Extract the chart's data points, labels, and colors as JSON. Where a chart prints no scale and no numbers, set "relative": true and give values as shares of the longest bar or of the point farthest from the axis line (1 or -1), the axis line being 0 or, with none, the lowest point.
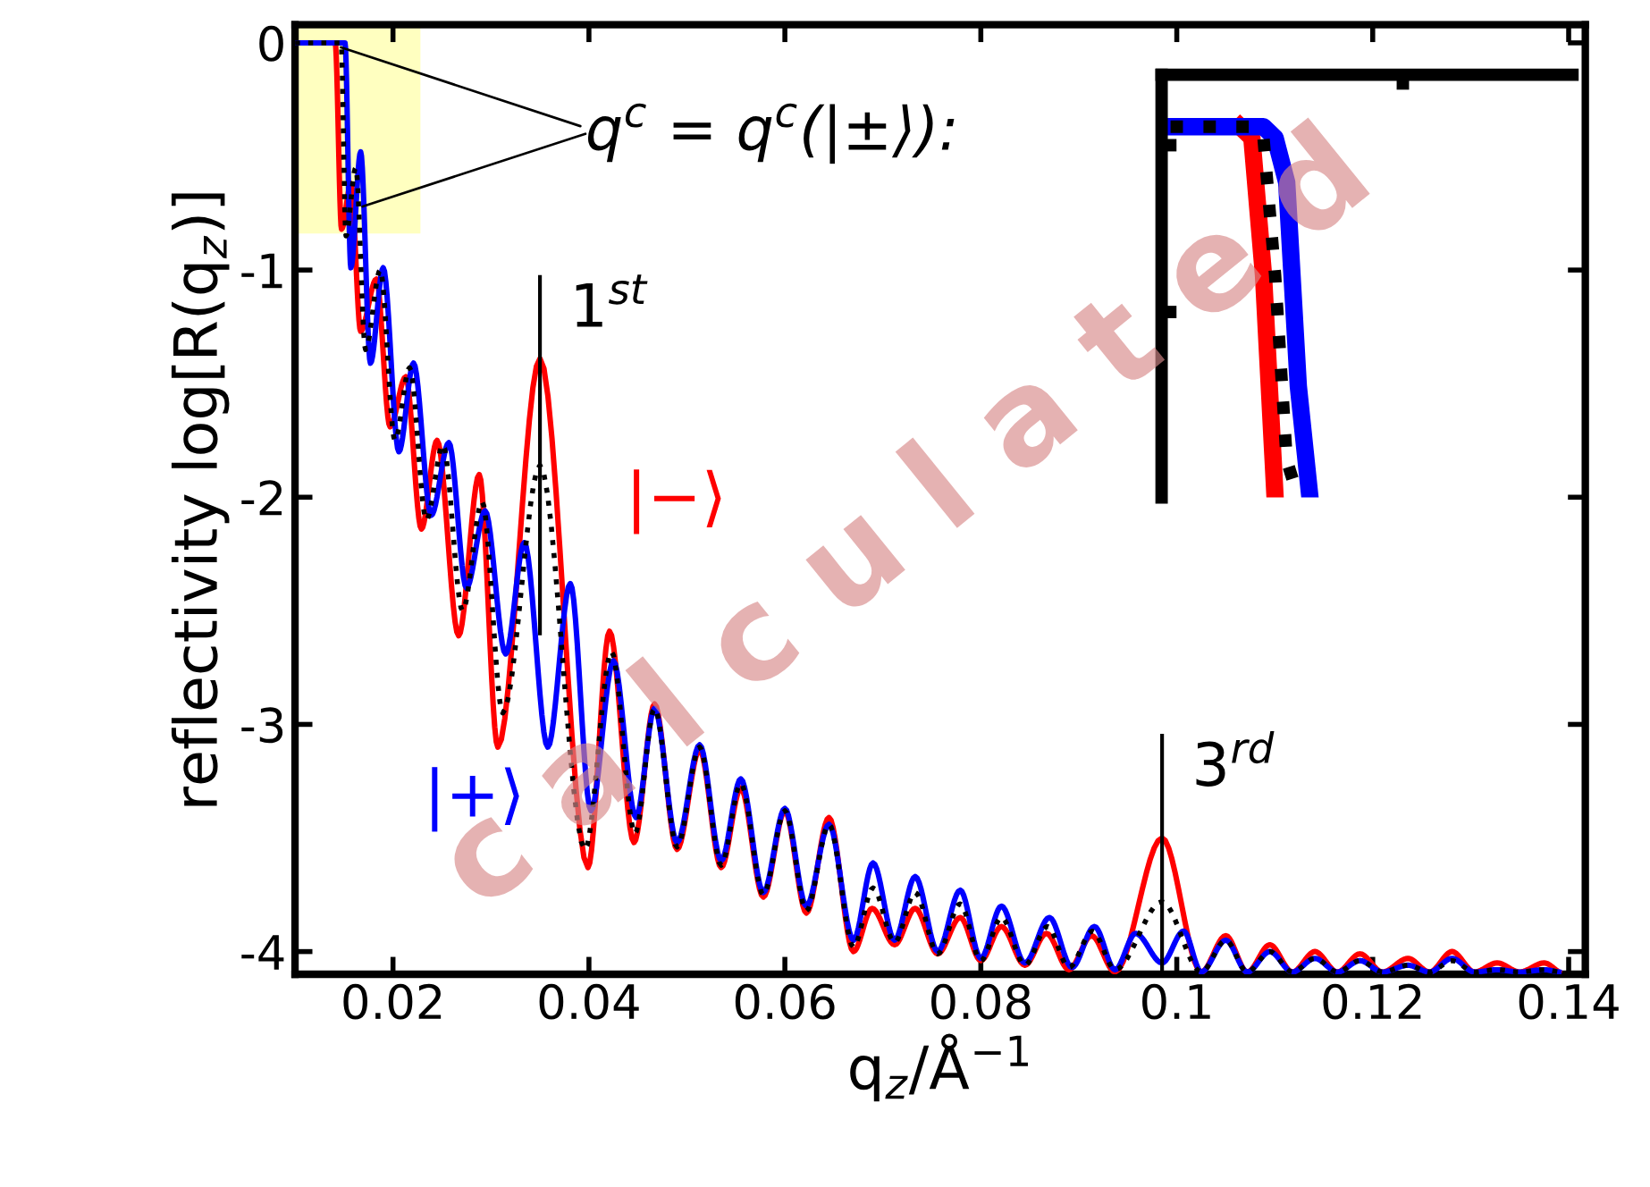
{
  "chart_data": [
    {
      "type": "line",
      "xlabel": "q$_{z}$/Å$^{−1}$",
      "ylabel": "reflectivity log[R(q$_{z}$)]",
      "xlim": [
        0.01,
        0.1417
      ],
      "ylim": [
        -4.1,
        0.08
      ],
      "xticks": [
        0.02,
        0.04,
        0.06,
        0.08,
        0.1,
        0.12,
        0.14
      ],
      "yticks": [
        0,
        -1,
        -2,
        -3,
        -4
      ],
      "grid": false,
      "series": [
        {
          "name": "|−⟩",
          "color": "#ff0000",
          "line_style": "solid",
          "x": [
            0.01,
            0.0141,
            0.01475,
            0.0157,
            0.0167,
            0.0183,
            0.0197,
            0.0213,
            0.0229,
            0.0245,
            0.0267,
            0.0288,
            0.0307,
            0.035,
            0.0399,
            0.0421,
            0.0446,
            0.0467,
            0.049,
            0.0513,
            0.0535,
            0.0555,
            0.0578,
            0.06,
            0.0622,
            0.0645,
            0.067,
            0.0689,
            0.0712,
            0.0733,
            0.0756,
            0.0779,
            0.08,
            0.0821,
            0.0845,
            0.0867,
            0.089,
            0.0913,
            0.0937,
            0.0985,
            0.1025,
            0.105,
            0.1072,
            0.1095,
            0.1118,
            0.1141,
            0.1164,
            0.1187,
            0.121,
            0.1236,
            0.1258,
            0.1281,
            0.1304,
            0.1327,
            0.135,
            0.1375,
            0.139
          ],
          "values": [
            0,
            0,
            -0.82,
            -0.62,
            -1.27,
            -1.04,
            -1.69,
            -1.47,
            -2.14,
            -1.75,
            -2.61,
            -1.9,
            -3.1,
            -1.39,
            -3.63,
            -2.59,
            -3.52,
            -2.91,
            -3.55,
            -3.11,
            -3.63,
            -3.28,
            -3.76,
            -3.38,
            -3.83,
            -3.41,
            -4.0,
            -3.81,
            -3.97,
            -3.81,
            -4.01,
            -3.85,
            -4.04,
            -3.89,
            -4.06,
            -3.92,
            -4.08,
            -3.93,
            -4.09,
            -3.5,
            -4.09,
            -3.93,
            -4.09,
            -3.97,
            -4.09,
            -4.0,
            -4.09,
            -4.01,
            -4.09,
            -4.03,
            -4.09,
            -4.0,
            -4.09,
            -4.05,
            -4.09,
            -4.05,
            -4.09
          ]
        },
        {
          "name": "|+⟩",
          "color": "#0000ff",
          "line_style": "solid",
          "x": [
            0.01,
            0.0151,
            0.0157,
            0.0167,
            0.0177,
            0.019,
            0.0206,
            0.0221,
            0.0239,
            0.0257,
            0.0275,
            0.0294,
            0.0315,
            0.0334,
            0.0358,
            0.0381,
            0.0402,
            0.0425,
            0.0448,
            0.0467,
            0.049,
            0.0513,
            0.0535,
            0.0555,
            0.0578,
            0.06,
            0.0622,
            0.0645,
            0.067,
            0.069,
            0.0712,
            0.0733,
            0.0756,
            0.0779,
            0.08,
            0.0821,
            0.0845,
            0.087,
            0.0893,
            0.0916,
            0.0937,
            0.0958,
            0.0985,
            0.1007,
            0.1025,
            0.105,
            0.1072,
            0.1095,
            0.1118,
            0.1141,
            0.1164,
            0.1187,
            0.121,
            0.1236,
            0.1258,
            0.1281,
            0.1304,
            0.1327,
            0.135,
            0.1375,
            0.139
          ],
          "values": [
            0,
            0,
            -0.99,
            -0.48,
            -1.41,
            -0.99,
            -1.8,
            -1.41,
            -2.08,
            -1.76,
            -2.4,
            -2.06,
            -2.69,
            -2.2,
            -3.1,
            -2.38,
            -3.38,
            -2.72,
            -3.41,
            -2.93,
            -3.52,
            -3.09,
            -3.6,
            -3.24,
            -3.74,
            -3.37,
            -3.8,
            -3.44,
            -3.95,
            -3.61,
            -3.95,
            -3.67,
            -4.0,
            -3.73,
            -4.03,
            -3.8,
            -4.05,
            -3.85,
            -4.07,
            -3.89,
            -4.08,
            -3.92,
            -4.05,
            -3.91,
            -4.09,
            -3.95,
            -4.09,
            -4.0,
            -4.09,
            -4.03,
            -4.09,
            -4.04,
            -4.09,
            -4.06,
            -4.09,
            -4.03,
            -4.09,
            -4.08,
            -4.09,
            -4.08,
            -4.09
          ]
        },
        {
          "color": "#000000",
          "line_style": "dotted",
          "x": [
            0.01,
            0.0147,
            0.0152,
            0.0162,
            0.0172,
            0.0187,
            0.0202,
            0.0217,
            0.0234,
            0.0251,
            0.0271,
            0.0291,
            0.0312,
            0.035,
            0.0396,
            0.0423,
            0.0447,
            0.0467,
            0.049,
            0.0513,
            0.0535,
            0.0555,
            0.0578,
            0.06,
            0.0622,
            0.0645,
            0.067,
            0.069,
            0.0712,
            0.0733,
            0.0756,
            0.0779,
            0.08,
            0.0821,
            0.0845,
            0.0868,
            0.089,
            0.0914,
            0.0937,
            0.0985,
            0.1025,
            0.105,
            0.1072,
            0.1095,
            0.1118,
            0.1141,
            0.1164,
            0.1187,
            0.121,
            0.1236,
            0.1258,
            0.1281,
            0.1304,
            0.1327,
            0.135,
            0.1375,
            0.139
          ],
          "values": [
            0,
            0,
            -0.85,
            -0.55,
            -1.35,
            -1.0,
            -1.75,
            -1.43,
            -2.1,
            -1.77,
            -2.5,
            -2.02,
            -2.95,
            -1.86,
            -3.55,
            -2.68,
            -3.48,
            -2.93,
            -3.54,
            -3.1,
            -3.62,
            -3.26,
            -3.75,
            -3.38,
            -3.82,
            -3.44,
            -3.98,
            -3.72,
            -3.96,
            -3.74,
            -4.01,
            -3.79,
            -4.04,
            -3.85,
            -4.06,
            -3.89,
            -4.07,
            -3.91,
            -4.08,
            -3.78,
            -4.09,
            -3.95,
            -4.09,
            -4.0,
            -4.09,
            -4.03,
            -4.09,
            -4.04,
            -4.09,
            -4.06,
            -4.09,
            -4.04,
            -4.09,
            -4.08,
            -4.09,
            -4.08,
            -4.09
          ]
        },
        {
          "color": "#000000",
          "line_style": "solid",
          "x": [
            0.035,
            0.035
          ],
          "values": [
            -1.03,
            -2.6
          ]
        },
        {
          "color": "#000000",
          "line_style": "solid",
          "x": [
            0.0985,
            0.0985
          ],
          "values": [
            -3.05,
            -4.1
          ]
        }
      ],
      "bands": [
        {
          "axis": "x",
          "from": 0.01,
          "to": 0.0228,
          "color": "#ffffc0"
        }
      ],
      "annotations": [
        {
          "text": "1$^{st}$",
          "x": 0.035,
          "y": -1.03
        },
        {
          "text": "3$^{rd}$",
          "x": 0.0985,
          "y": -3.05
        },
        {
          "text": "q$^{c}$ = q$^{c}$(|±⟩):",
          "x": 0.0147,
          "y": -0.02
        },
        "c a l c u l a t e d"
      ]
    },
    {
      "type": "line",
      "relative": true,
      "categories": [
        null,
        null,
        null,
        null,
        null,
        null,
        null,
        null,
        null,
        null,
        null,
        null,
        null
      ],
      "series": [
        {
          "color": "#ff0000",
          "line_style": "solid",
          "values": [
            null,
            null,
            null,
            null,
            null,
            null,
            1,
            0.97,
            0.6,
            0.0,
            null,
            null,
            null
          ]
        },
        {
          "color": "#0000ff",
          "line_style": "solid",
          "values": [
            1,
            1,
            1,
            1,
            1,
            1,
            1,
            1,
            1,
            0.97,
            0.85,
            0.3,
            0.0
          ]
        },
        {
          "color": "#000000",
          "line_style": "dotted",
          "values": [
            1,
            1,
            1,
            1,
            1,
            1,
            1,
            1,
            0.97,
            0.6,
            0.1,
            0.0,
            null
          ]
        }
      ]
    }
  ]
}
